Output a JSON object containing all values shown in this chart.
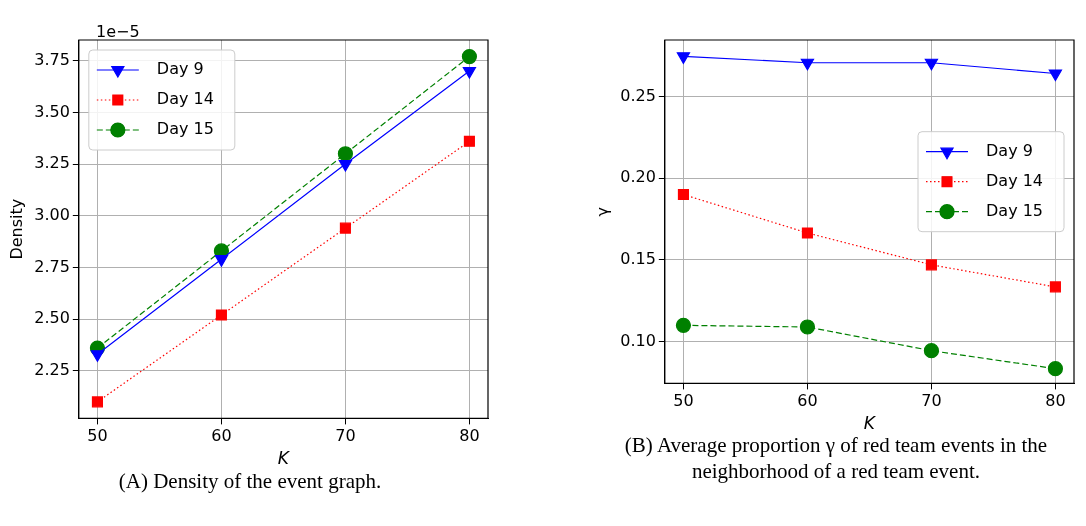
{
  "chart_data": [
    {
      "type": "line",
      "x": [
        50,
        60,
        70,
        80
      ],
      "xlabel": "K",
      "ylabel": "Density",
      "xlim": [
        48.5,
        81.5
      ],
      "xticks": [
        50,
        60,
        70,
        80
      ],
      "ylim": [
        2.02,
        3.85
      ],
      "yticks": [
        2.25,
        {
          "value": 2.5,
          "label": "2.50"
        },
        2.75,
        {
          "value": 3,
          "label": "3.00"
        },
        3.25,
        {
          "value": 3.5,
          "label": "3.50"
        },
        3.75
      ],
      "grid": true,
      "legend": "top left",
      "series": [
        {
          "name": "Day 9",
          "color": "#0000ff",
          "marker": "triangle",
          "line_style": "solid",
          "values": [
            2.33,
            2.79,
            3.25,
            3.7
          ]
        },
        {
          "name": "Day 14",
          "color": "#ff0000",
          "marker": "square",
          "line_style": "dotted",
          "values": [
            2.1,
            2.52,
            2.94,
            3.36
          ]
        },
        {
          "name": "Day 15",
          "color": "#008000",
          "marker": "circle",
          "line_style": "dashed",
          "values": [
            2.36,
            2.83,
            3.3,
            3.77
          ]
        }
      ],
      "annotations": [
        "1e−5",
        "(A) Density of the event graph."
      ]
    },
    {
      "type": "line",
      "x": [
        50,
        60,
        70,
        80
      ],
      "xlabel": "K",
      "ylabel": "γ",
      "xlim": [
        48.5,
        81.5
      ],
      "xticks": [
        50,
        60,
        70,
        80
      ],
      "ylim": [
        0.0745,
        0.2845
      ],
      "yticks": [
        {
          "value": 0.1,
          "label": "0.10"
        },
        0.15,
        {
          "value": 0.2,
          "label": "0.20"
        },
        0.25
      ],
      "grid": true,
      "legend": "right",
      "series": [
        {
          "name": "Day 9",
          "color": "#0000ff",
          "marker": "triangle",
          "line_style": "solid",
          "values": [
            0.2745,
            0.2706,
            0.2706,
            0.264
          ]
        },
        {
          "name": "Day 14",
          "color": "#ff0000",
          "marker": "square",
          "line_style": "dotted",
          "values": [
            0.19,
            0.1665,
            0.147,
            0.1335
          ]
        },
        {
          "name": "Day 15",
          "color": "#008000",
          "marker": "circle",
          "line_style": "dashed",
          "values": [
            0.11,
            0.109,
            0.0945,
            0.0835
          ]
        }
      ],
      "annotations": [
        "(B) Average proportion γ of red team events in the neighborhood of a red team event."
      ]
    }
  ]
}
